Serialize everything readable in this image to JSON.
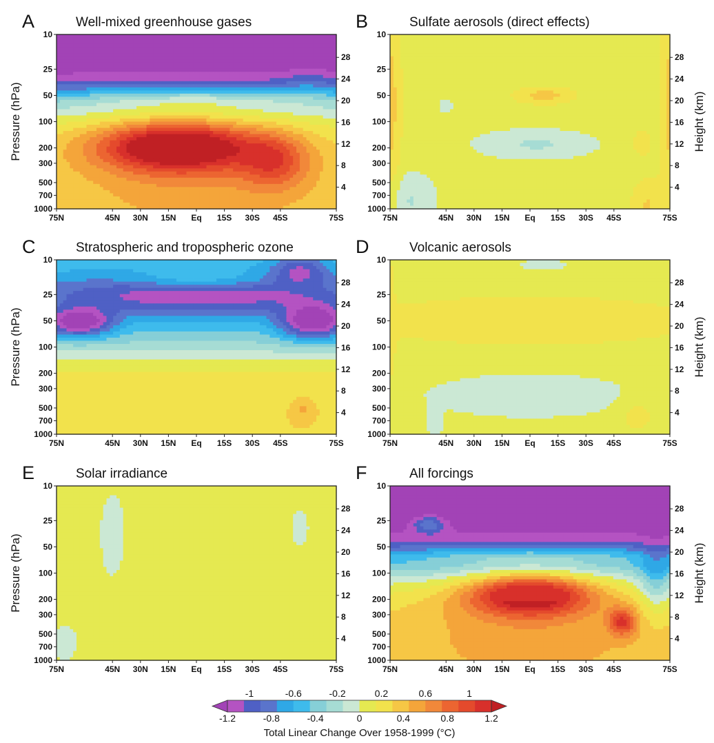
{
  "chart_data": {
    "type": "heatmap",
    "layout": "3 rows x 2 columns of latitude-pressure contour panels",
    "x_tick_labels": [
      "75N",
      "45N",
      "30N",
      "15N",
      "Eq",
      "15S",
      "30S",
      "45S",
      "75S"
    ],
    "y_tick_labels": [
      "10",
      "25",
      "50",
      "100",
      "200",
      "300",
      "500",
      "700",
      "1000"
    ],
    "y2_tick_labels": [
      "28",
      "24",
      "20",
      "16",
      "12",
      "8",
      "4"
    ],
    "ylabel": "Pressure (hPa)",
    "y2label": "Height (km)",
    "y_scale": "log",
    "ylim": [
      1000,
      10
    ],
    "panels": [
      {
        "letter": "A",
        "title": "Well-mixed greenhouse gases",
        "show_ylabel": true,
        "show_y2label": false,
        "summary": {
          "min_C": -1.2,
          "max_C": 1.2,
          "pattern": "strong tropospheric warming peaking 200-300 hPa in tropics; cooling above ~50 hPa"
        }
      },
      {
        "letter": "B",
        "title": "Sulfate aerosols (direct effects)",
        "show_ylabel": false,
        "show_y2label": true,
        "summary": {
          "min_C": -0.2,
          "max_C": 0.2,
          "pattern": "weak changes; slight cooling in upper troposphere, slight warming near 50 hPa"
        }
      },
      {
        "letter": "C",
        "title": "Stratospheric and tropospheric ozone",
        "show_ylabel": true,
        "show_y2label": false,
        "summary": {
          "min_C": -1.2,
          "max_C": 0.4,
          "pattern": "stratospheric cooling strongest at high latitudes ~100 hPa; weak tropospheric warming"
        }
      },
      {
        "letter": "D",
        "title": "Volcanic aerosols",
        "show_ylabel": false,
        "show_y2label": true,
        "summary": {
          "min_C": -0.2,
          "max_C": 0.2,
          "pattern": "weak warming in stratosphere, near zero in troposphere"
        }
      },
      {
        "letter": "E",
        "title": "Solar irradiance",
        "show_ylabel": true,
        "show_y2label": false,
        "summary": {
          "min_C": -0.2,
          "max_C": 0.4,
          "pattern": "weak uniform warming almost everywhere"
        }
      },
      {
        "letter": "F",
        "title": "All forcings",
        "show_ylabel": false,
        "show_y2label": true,
        "summary": {
          "min_C": -1.2,
          "max_C": 1.2,
          "pattern": "tropospheric warming peaking ~200-300 hPa in tropics; strong cooling above ~100 hPa"
        }
      }
    ],
    "colorbar": {
      "title": "Total Linear Change Over 1958-1999 (°C)",
      "bounds": [
        -1.2,
        -1,
        -0.8,
        -0.6,
        -0.4,
        -0.2,
        0,
        0.2,
        0.4,
        0.6,
        0.8,
        1,
        1.2
      ],
      "upper_labels": [
        "-1",
        "-0.6",
        "-0.2",
        "0.2",
        "0.6",
        "1"
      ],
      "lower_labels": [
        "-1.2",
        "-0.8",
        "-0.4",
        "0",
        "0.4",
        "0.8",
        "1.2"
      ],
      "colors": [
        "#a243b6",
        "#b453c2",
        "#4f60c5",
        "#5a74cc",
        "#2fa8e6",
        "#3ebbec",
        "#86cfd7",
        "#a6dcd4",
        "#cbe8d4",
        "#e5e951",
        "#f2e24c",
        "#f6c745",
        "#f4a53a",
        "#f1883a",
        "#ec6531",
        "#e44a2c",
        "#d8302b",
        "#c02024"
      ],
      "extend": "both"
    }
  }
}
